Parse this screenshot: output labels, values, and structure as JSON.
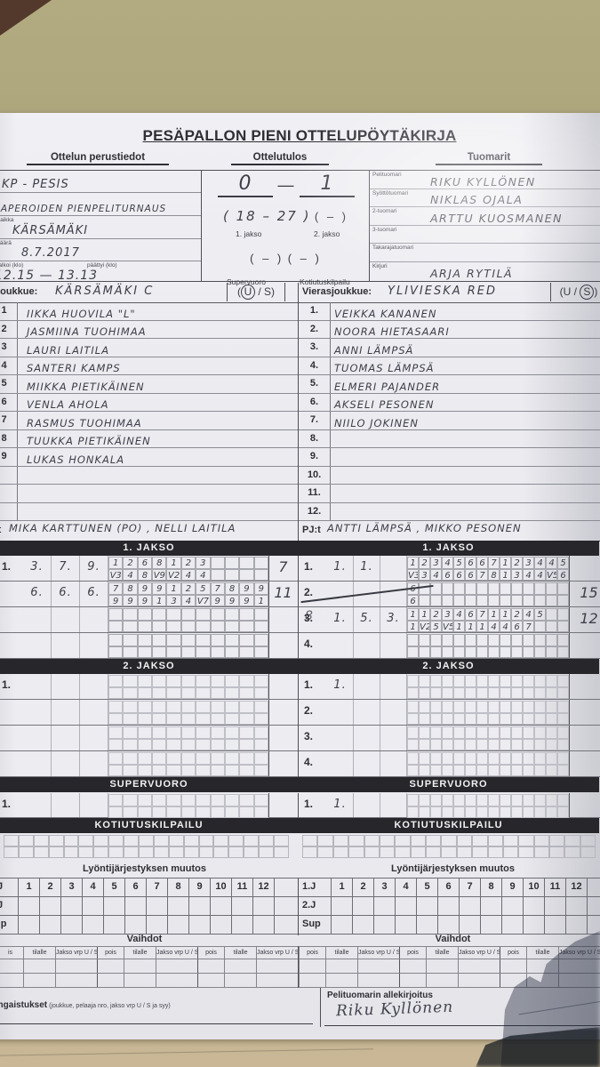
{
  "title": "PESÄPALLON PIENI OTTELUPÖYTÄKIRJA",
  "sections": {
    "perustiedot_title": "Ottelun perustiedot",
    "tulos_title": "Ottelutulos",
    "tuomarit_title": "Tuomarit"
  },
  "perustiedot": {
    "rows": [
      {
        "label": "",
        "value": "KP - PESIS"
      },
      {
        "label": "",
        "value": "NAPEROIDEN PIENPELITURNAUS"
      },
      {
        "label": "upaikka",
        "value": "KÄRSÄMÄKI"
      },
      {
        "label": "imäärä",
        "value": "8.7.2017"
      }
    ],
    "time_row": {
      "label_start": "u alkoi (klo)",
      "label_end": "päättyi (klo)",
      "value": "12.15  —  13.13"
    }
  },
  "tulos": {
    "final_home": "0",
    "final_dash": "—",
    "final_away": "1",
    "jakso1_value": "( 18  –  27 )",
    "jakso2_value": "(    –    )",
    "jakso1_label": "1. jakso",
    "jakso2_label": "2. jakso",
    "super_value": "(    –    )",
    "kotiutus_value": "(    –    )",
    "super_label": "Supervuoro",
    "kotiutus_label": "Kotiutuskilpailu"
  },
  "tuomarit": [
    {
      "label": "Pelituomari",
      "value": "RIKU KYLLÖNEN"
    },
    {
      "label": "Syöttötuomari",
      "value": "NIKLAS OJALA"
    },
    {
      "label": "2-tuomari",
      "value": "ARTTU KUOSMANEN"
    },
    {
      "label": "3-tuomari",
      "value": ""
    },
    {
      "label": "Takarajatuomari",
      "value": ""
    },
    {
      "label": "Kirjuri",
      "value": "ARJA RYTILÄ"
    }
  ],
  "rosters": {
    "home": {
      "label": "ijoukkue:",
      "name": "KÄRSÄMÄKI  C",
      "us": {
        "open": "(",
        "u": "U",
        "slash": "/",
        "s": "S",
        "close": ")",
        "circled": "U"
      },
      "numbers": [
        "1",
        "2",
        "3",
        "4",
        "5",
        "6",
        "7",
        "8",
        "9",
        "",
        "",
        ""
      ],
      "players": [
        "IIKKA HUOVILA \"L\"",
        "JASMIINA TUOHIMAA",
        "LAURI LAITILA",
        "SANTERI KAMPS",
        "MIIKKA PIETIKÄINEN",
        "VENLA AHOLA",
        "RASMUS TUOHIMAA",
        "TUUKKA PIETIKÄINEN",
        "LUKAS HONKALA",
        "",
        "",
        ""
      ],
      "pj_label": ":t",
      "pj": "MIKA KARTTUNEN (PO) , NELLI LAITILA"
    },
    "away": {
      "label": "Vierasjoukkue:",
      "name": "YLIVIESKA  RED",
      "us": {
        "open": "(",
        "u": "U",
        "slash": "/",
        "s": "S",
        "close": ")",
        "circled": "S"
      },
      "numbers": [
        "1.",
        "2.",
        "3.",
        "4.",
        "5.",
        "6.",
        "7.",
        "8.",
        "9.",
        "10.",
        "11.",
        "12."
      ],
      "players": [
        "VEIKKA KANANEN",
        "NOORA HIETASAARI",
        "ANNI LÄMPSÄ",
        "TUOMAS LÄMPSÄ",
        "ELMERI PAJANDER",
        "AKSELI PESONEN",
        "NIILO JOKINEN",
        "",
        "",
        "",
        "",
        ""
      ],
      "pj_label": "PJ:t",
      "pj": "ANTTI LÄMPSÄ , MIKKO PESONEN"
    }
  },
  "jakso1": {
    "title": "1. JAKSO",
    "left": {
      "grid_cols": 11,
      "rows": [
        {
          "label": "1.",
          "entries": [
            "3.",
            "7.",
            "9."
          ],
          "top": [
            "1",
            "2",
            "6",
            "8",
            "1",
            "2",
            "3"
          ],
          "bot": [
            "V3",
            "4",
            "8",
            "V9",
            "V2",
            "4",
            "4"
          ],
          "score": "7"
        },
        {
          "label": "",
          "entries": [
            "6.",
            "6.",
            "6."
          ],
          "top": [
            "7",
            "8",
            "9",
            "9",
            "1",
            "2",
            "5",
            "7",
            "8",
            "9",
            "9"
          ],
          "bot": [
            "9",
            "9",
            "9",
            "1",
            "3",
            "4",
            "V7",
            "9",
            "9",
            "9",
            "1"
          ],
          "score": "11"
        },
        {
          "label": "",
          "entries": [],
          "top": [],
          "bot": [],
          "score": ""
        },
        {
          "label": "",
          "entries": [],
          "top": [],
          "bot": [],
          "score": ""
        }
      ]
    },
    "right": {
      "grid_cols": 14,
      "rows": [
        {
          "label": "1.",
          "entries": [
            "1.",
            "1."
          ],
          "top": [
            "1",
            "2",
            "3",
            "4",
            "5",
            "6",
            "6",
            "7",
            "1",
            "2",
            "3",
            "4",
            "4",
            "5"
          ],
          "bot": [
            "V3",
            "3",
            "4",
            "6",
            "6",
            "6",
            "7",
            "8",
            "1",
            "3",
            "4",
            "4",
            "V5",
            "6"
          ],
          "score": ""
        },
        {
          "label": "2.",
          "crossed": true,
          "entries": [],
          "top": [
            "6"
          ],
          "bot": [
            "6"
          ],
          "score": "15"
        },
        {
          "label": "3.",
          "overwrite": "8",
          "entries": [
            "1.",
            "5.",
            "3."
          ],
          "top": [
            "1",
            "1",
            "2",
            "3",
            "4",
            "6",
            "7",
            "1",
            "1",
            "2",
            "4",
            "5"
          ],
          "bot": [
            "1",
            "V24",
            "5",
            "V5",
            "1",
            "1",
            "1",
            "4",
            "4",
            "6",
            "7"
          ],
          "score": "12"
        },
        {
          "label": "4.",
          "entries": [],
          "top": [],
          "bot": [],
          "score": ""
        }
      ]
    }
  },
  "jakso2": {
    "title": "2. JAKSO",
    "left": {
      "grid_cols": 11,
      "rows": [
        {
          "label": "1.",
          "entries": [],
          "top": [],
          "bot": [],
          "score": ""
        },
        {
          "label": "",
          "entries": [],
          "top": [],
          "bot": [],
          "score": ""
        },
        {
          "label": "",
          "entries": [],
          "top": [],
          "bot": [],
          "score": ""
        },
        {
          "label": "",
          "entries": [],
          "top": [],
          "bot": [],
          "score": ""
        }
      ]
    },
    "right": {
      "grid_cols": 14,
      "rows": [
        {
          "label": "1.",
          "entries": [
            "1."
          ],
          "top": [],
          "bot": [],
          "score": ""
        },
        {
          "label": "2.",
          "entries": [],
          "top": [],
          "bot": [],
          "score": ""
        },
        {
          "label": "3.",
          "entries": [],
          "top": [],
          "bot": [],
          "score": ""
        },
        {
          "label": "4.",
          "entries": [],
          "top": [],
          "bot": [],
          "score": ""
        }
      ]
    }
  },
  "supervuoro": {
    "title": "SUPERVUORO",
    "left": {
      "grid_cols": 11,
      "rows": [
        {
          "label": "1.",
          "entries": [],
          "top": [],
          "bot": [],
          "score": ""
        }
      ]
    },
    "right": {
      "grid_cols": 14,
      "rows": [
        {
          "label": "1.",
          "entries": [
            "1."
          ],
          "top": [],
          "bot": [],
          "score": ""
        }
      ]
    }
  },
  "kotiutus": {
    "title": "KOTIUTUSKILPAILU"
  },
  "lyonti": {
    "title": "Lyöntijärjestyksen muutos",
    "left_rows": [
      ".J",
      ".J",
      "up"
    ],
    "right_rows": [
      "1.J",
      "2.J",
      "Sup"
    ],
    "cols": [
      "1",
      "2",
      "3",
      "4",
      "5",
      "6",
      "7",
      "8",
      "9",
      "10",
      "11",
      "12"
    ]
  },
  "vaihdot": {
    "title": "Vaihdot",
    "left_cols": [
      "is",
      "tilalle",
      "Jakso vrp U / S",
      "pois",
      "tilalle",
      "Jakso vrp U / S",
      "pois",
      "tilalle",
      "Jakso vrp U / S"
    ],
    "right_cols": [
      "pois",
      "tilalle",
      "Jakso vrp U / S",
      "pois",
      "tilalle",
      "Jakso vrp U / S",
      "pois",
      "tilalle",
      "Jakso vrp U / S"
    ]
  },
  "footer": {
    "rangaistukset_bold": "angaistukset",
    "rangaistukset_rest": " (joukkue, pelaaja nro, jakso vrp U / S ja syy)",
    "allekirjoitus_label": "Pelituomarin allekirjoitus",
    "signature": "Riku Kyllönen"
  }
}
